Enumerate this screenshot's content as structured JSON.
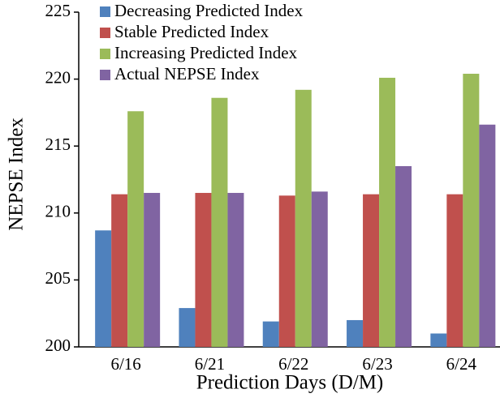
{
  "chart_data": {
    "type": "bar",
    "x_label": "Prediction Days (D/M)",
    "y_label": "NEPSE Index",
    "categories": [
      "6/16",
      "6/21",
      "6/22",
      "6/23",
      "6/24"
    ],
    "series": [
      {
        "name": "Decreasing Predicted Index",
        "color": "#4f81bd",
        "values": [
          208.7,
          202.9,
          201.9,
          202.0,
          201.0
        ]
      },
      {
        "name": "Stable Predicted Index",
        "color": "#c0504d",
        "values": [
          211.4,
          211.5,
          211.3,
          211.4,
          211.4
        ]
      },
      {
        "name": "Increasing Predicted Index",
        "color": "#9bbb59",
        "values": [
          217.6,
          218.6,
          219.2,
          220.1,
          220.4
        ]
      },
      {
        "name": "Actual NEPSE Index",
        "color": "#8064a2",
        "values": [
          211.5,
          211.5,
          211.6,
          213.5,
          216.6
        ]
      }
    ],
    "ylim": [
      200,
      225
    ],
    "yticks": [
      200,
      205,
      210,
      215,
      220,
      225
    ]
  }
}
